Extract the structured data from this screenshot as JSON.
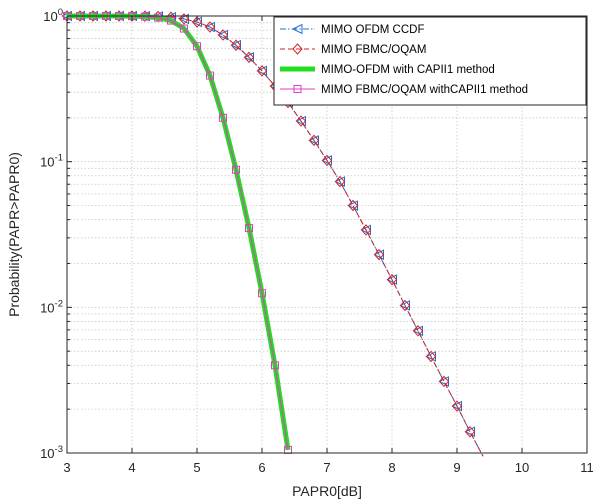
{
  "chart_data": {
    "type": "line",
    "title": "",
    "xlabel": "PAPR0[dB]",
    "ylabel": "Probability(PAPR>PAPR0)",
    "xlim": [
      3,
      11
    ],
    "ylim": [
      0.001,
      1
    ],
    "yscale": "log",
    "x_ticks": [
      "3",
      "4",
      "5",
      "6",
      "7",
      "8",
      "9",
      "10",
      "11"
    ],
    "y_ticks": [
      {
        "base": "10",
        "exp": "0"
      },
      {
        "base": "10",
        "exp": "-1"
      },
      {
        "base": "10",
        "exp": "-2"
      },
      {
        "base": "10",
        "exp": "-3"
      }
    ],
    "grid": true,
    "legend_position": "top-right",
    "series": [
      {
        "name": "MIMO OFDM CCDF",
        "color": "#1f6fd1",
        "line": "dashdot",
        "marker": "triangle-left",
        "points": [
          [
            3.0,
            1.0
          ],
          [
            3.2,
            1.0
          ],
          [
            3.4,
            1.0
          ],
          [
            3.6,
            1.0
          ],
          [
            3.8,
            1.0
          ],
          [
            4.0,
            1.0
          ],
          [
            4.2,
            0.998
          ],
          [
            4.4,
            0.993
          ],
          [
            4.6,
            0.98
          ],
          [
            4.8,
            0.955
          ],
          [
            5.0,
            0.91
          ],
          [
            5.2,
            0.84
          ],
          [
            5.4,
            0.74
          ],
          [
            5.6,
            0.63
          ],
          [
            5.8,
            0.52
          ],
          [
            6.0,
            0.42
          ],
          [
            6.2,
            0.33
          ],
          [
            6.4,
            0.255
          ],
          [
            6.6,
            0.19
          ],
          [
            6.8,
            0.14
          ],
          [
            7.0,
            0.102
          ],
          [
            7.2,
            0.073
          ],
          [
            7.4,
            0.05
          ],
          [
            7.6,
            0.034
          ],
          [
            7.8,
            0.023
          ],
          [
            8.0,
            0.0155
          ],
          [
            8.2,
            0.0103
          ],
          [
            8.4,
            0.0069
          ],
          [
            8.6,
            0.0046
          ],
          [
            8.8,
            0.0031
          ],
          [
            9.0,
            0.0021
          ],
          [
            9.2,
            0.0014
          ],
          [
            9.4,
            0.00095
          ]
        ]
      },
      {
        "name": "MIMO FBMC/OQAM",
        "color": "#d62020",
        "line": "dashed",
        "marker": "diamond",
        "points": [
          [
            3.0,
            1.0
          ],
          [
            3.2,
            1.0
          ],
          [
            3.4,
            1.0
          ],
          [
            3.6,
            1.0
          ],
          [
            3.8,
            1.0
          ],
          [
            4.0,
            1.0
          ],
          [
            4.2,
            0.998
          ],
          [
            4.4,
            0.993
          ],
          [
            4.6,
            0.98
          ],
          [
            4.8,
            0.955
          ],
          [
            5.0,
            0.91
          ],
          [
            5.2,
            0.84
          ],
          [
            5.4,
            0.74
          ],
          [
            5.6,
            0.63
          ],
          [
            5.8,
            0.52
          ],
          [
            6.0,
            0.42
          ],
          [
            6.2,
            0.33
          ],
          [
            6.4,
            0.255
          ],
          [
            6.6,
            0.19
          ],
          [
            6.8,
            0.14
          ],
          [
            7.0,
            0.102
          ],
          [
            7.2,
            0.073
          ],
          [
            7.4,
            0.05
          ],
          [
            7.6,
            0.034
          ],
          [
            7.8,
            0.023
          ],
          [
            8.0,
            0.0155
          ],
          [
            8.2,
            0.0103
          ],
          [
            8.4,
            0.0069
          ],
          [
            8.6,
            0.0046
          ],
          [
            8.8,
            0.0031
          ],
          [
            9.0,
            0.0021
          ],
          [
            9.2,
            0.0014
          ],
          [
            9.4,
            0.00095
          ]
        ]
      },
      {
        "name": "MIMO-OFDM with CAPII1 method",
        "color": "#22dd22",
        "line": "solid-thick",
        "marker": "none",
        "points": [
          [
            3.0,
            1.0
          ],
          [
            3.2,
            1.0
          ],
          [
            3.4,
            1.0
          ],
          [
            3.6,
            1.0
          ],
          [
            3.8,
            1.0
          ],
          [
            4.0,
            0.998
          ],
          [
            4.2,
            0.99
          ],
          [
            4.4,
            0.975
          ],
          [
            4.6,
            0.93
          ],
          [
            4.8,
            0.82
          ],
          [
            5.0,
            0.62
          ],
          [
            5.2,
            0.39
          ],
          [
            5.4,
            0.2
          ],
          [
            5.6,
            0.088
          ],
          [
            5.8,
            0.035
          ],
          [
            6.0,
            0.0125
          ],
          [
            6.2,
            0.004
          ],
          [
            6.4,
            0.00105
          ]
        ]
      },
      {
        "name": "MIMO FBMC/OQAM withCAPII1 method",
        "color": "#e040c0",
        "line": "solid",
        "marker": "square",
        "points": [
          [
            3.0,
            1.0
          ],
          [
            3.2,
            1.0
          ],
          [
            3.4,
            1.0
          ],
          [
            3.6,
            1.0
          ],
          [
            3.8,
            1.0
          ],
          [
            4.0,
            0.998
          ],
          [
            4.2,
            0.99
          ],
          [
            4.4,
            0.975
          ],
          [
            4.6,
            0.93
          ],
          [
            4.8,
            0.82
          ],
          [
            5.0,
            0.62
          ],
          [
            5.2,
            0.39
          ],
          [
            5.4,
            0.2
          ],
          [
            5.6,
            0.088
          ],
          [
            5.8,
            0.035
          ],
          [
            6.0,
            0.0125
          ],
          [
            6.2,
            0.004
          ],
          [
            6.4,
            0.00105
          ]
        ]
      }
    ]
  }
}
